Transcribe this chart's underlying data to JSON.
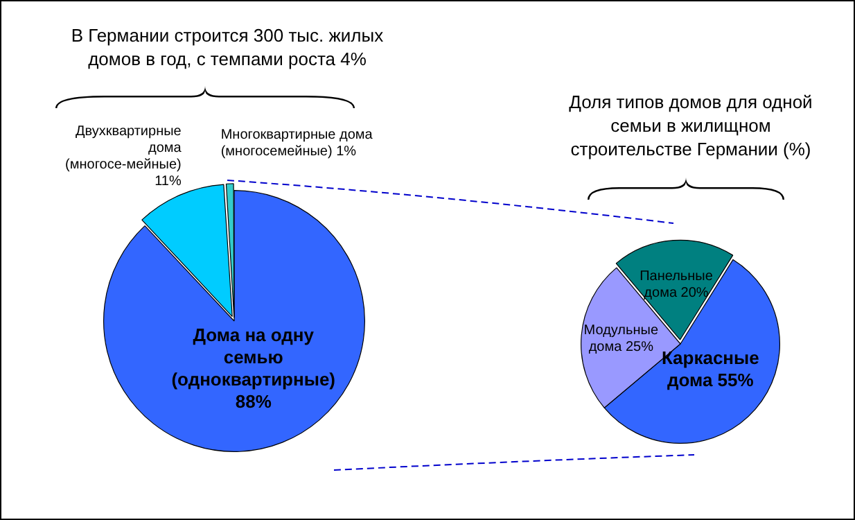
{
  "chart_data": [
    {
      "type": "pie",
      "title": "В Германии строится 300 тыс. жилых домов в год, с темпами роста 4%",
      "categories": [
        "Дома на одну семью (одноквартирные)",
        "Двухквартирные дома (многосе-мейные)",
        "Многоквартирные дома (многосемейные)"
      ],
      "values": [
        88,
        11,
        1
      ],
      "colors": [
        "#3366ff",
        "#00ccff",
        "#33cccc"
      ],
      "value_labels": [
        "88%",
        "11%",
        "1%"
      ],
      "legend": false
    },
    {
      "type": "pie",
      "title": "Доля типов домов для одной семьи в жилищном строительстве Германии (%)",
      "categories": [
        "Каркасные дома",
        "Модульные дома",
        "Панельные дома"
      ],
      "values": [
        55,
        25,
        20
      ],
      "colors": [
        "#3366ff",
        "#9999ff",
        "#008080"
      ],
      "value_labels": [
        "55%",
        "25%",
        "20%"
      ],
      "legend": false
    }
  ]
}
